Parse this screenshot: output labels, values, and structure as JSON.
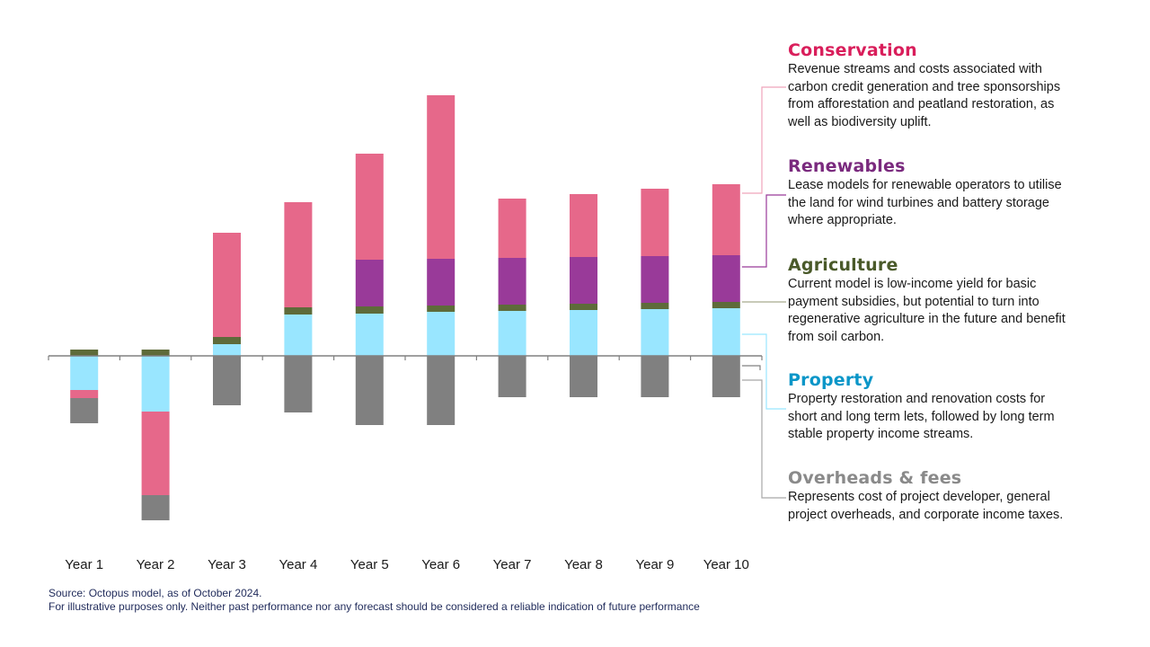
{
  "chart_data": {
    "type": "bar",
    "stacked": true,
    "title": "",
    "xlabel": "",
    "ylabel": "",
    "units": "relative (no axis scale shown)",
    "ylim": [
      -190,
      300
    ],
    "grid": false,
    "categories": [
      "Year 1",
      "Year 2",
      "Year 3",
      "Year 4",
      "Year 5",
      "Year 6",
      "Year 7",
      "Year 8",
      "Year 9",
      "Year 10"
    ],
    "series": [
      {
        "name": "Property",
        "color": "#99E6FF",
        "values": [
          -38,
          -62,
          13,
          46,
          47,
          49,
          50,
          51,
          52,
          53
        ]
      },
      {
        "name": "Agriculture",
        "color": "#5E6B3A",
        "values": [
          7,
          7,
          8,
          8,
          8,
          7,
          7,
          7,
          7,
          7
        ]
      },
      {
        "name": "Renewables",
        "color": "#993A99",
        "values": [
          0,
          0,
          0,
          0,
          52,
          52,
          52,
          52,
          52,
          52
        ]
      },
      {
        "name": "Conservation",
        "color": "#E6688A",
        "values": [
          -9,
          -93,
          116,
          117,
          118,
          182,
          66,
          70,
          75,
          79
        ]
      },
      {
        "name": "Overheads & fees",
        "color": "#808080",
        "values": [
          -28,
          -28,
          -55,
          -63,
          -77,
          -77,
          -46,
          -46,
          -46,
          -46
        ]
      }
    ],
    "legend_placement": "right"
  },
  "legend": [
    {
      "key": "conservation",
      "title": "Conservation",
      "color": "#D91E5B",
      "line_color": "#EFA3BA",
      "lines": [
        "Revenue streams and costs associated with",
        "carbon credit generation and tree sponsorships",
        "from afforestation and peatland restoration, as",
        "well as biodiversity uplift."
      ]
    },
    {
      "key": "renewables",
      "title": "Renewables",
      "color": "#7A2A7E",
      "line_color": "#993A99",
      "lines": [
        "Lease models for renewable operators to utilise",
        "the land for wind turbines and battery storage",
        "where appropriate."
      ]
    },
    {
      "key": "agriculture",
      "title": "Agriculture",
      "color": "#4A5A2A",
      "line_color": "#A6AA8E",
      "lines": [
        "Current model is low-income yield for basic",
        "payment subsidies, but potential to turn into",
        "regenerative agriculture in the future and benefit",
        "from soil carbon."
      ]
    },
    {
      "key": "property",
      "title": "Property",
      "color": "#0A96C8",
      "line_color": "#99E6FF",
      "lines": [
        "Property restoration and renovation costs for",
        "short and long term lets, followed by long term",
        "stable property income streams."
      ]
    },
    {
      "key": "overheads",
      "title": "Overheads & fees",
      "color": "#8A8A8A",
      "line_color": "#A8A8A8",
      "lines": [
        "Represents cost of project developer, general",
        "project overheads, and corporate income taxes."
      ]
    }
  ],
  "footnotes": {
    "source": "Source: Octopus model, as of October 2024.",
    "disclaimer": "For illustrative purposes only. Neither past performance nor any forecast should be considered a reliable indication of future performance"
  }
}
